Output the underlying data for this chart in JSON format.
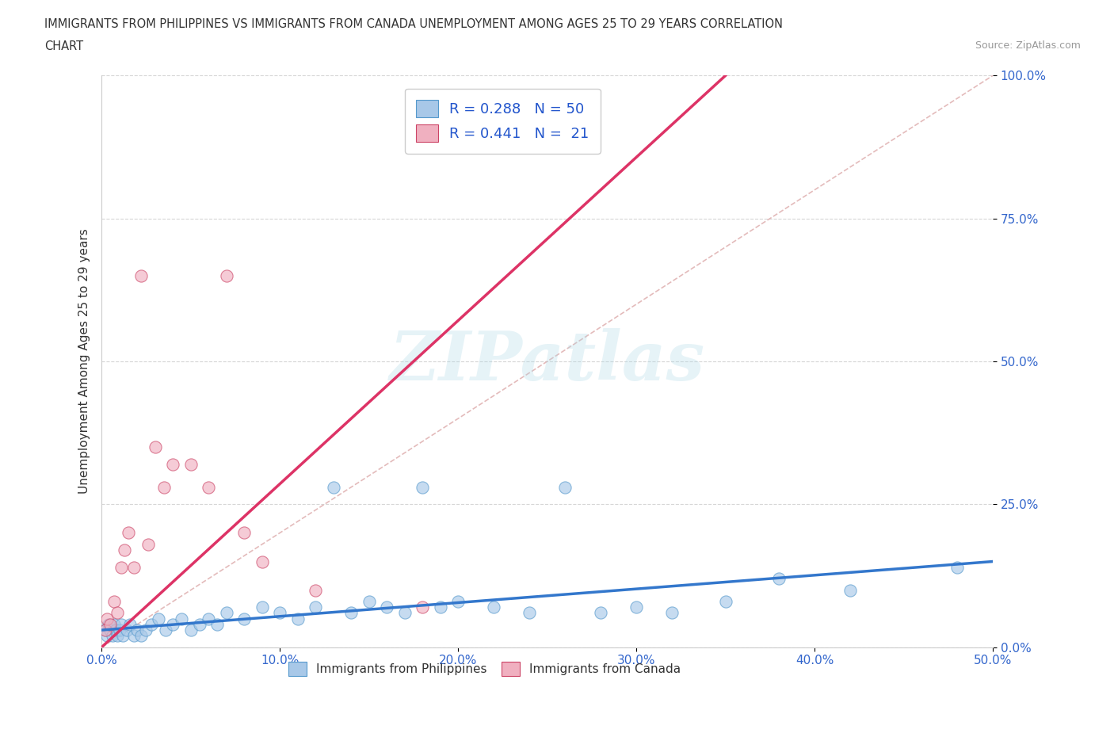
{
  "title_line1": "IMMIGRANTS FROM PHILIPPINES VS IMMIGRANTS FROM CANADA UNEMPLOYMENT AMONG AGES 25 TO 29 YEARS CORRELATION",
  "title_line2": "CHART",
  "source_text": "Source: ZipAtlas.com",
  "legend_label1": "Immigrants from Philippines",
  "legend_label2": "Immigrants from Canada",
  "ylabel": "Unemployment Among Ages 25 to 29 years",
  "xlim": [
    0.0,
    0.5
  ],
  "ylim": [
    0.0,
    1.0
  ],
  "xticks": [
    0.0,
    0.1,
    0.2,
    0.3,
    0.4,
    0.5
  ],
  "yticks": [
    0.0,
    0.25,
    0.5,
    0.75,
    1.0
  ],
  "xticklabels": [
    "0.0%",
    "10.0%",
    "20.0%",
    "30.0%",
    "40.0%",
    "50.0%"
  ],
  "yticklabels": [
    "0.0%",
    "25.0%",
    "50.0%",
    "75.0%",
    "100.0%"
  ],
  "color_blue": "#a8c8e8",
  "color_pink": "#f0b0c0",
  "edge_blue": "#5599cc",
  "edge_pink": "#cc4466",
  "line_blue_color": "#3377cc",
  "line_pink_color": "#dd3366",
  "line_diag_color": "#ddaaaa",
  "R_blue": 0.288,
  "N_blue": 50,
  "R_pink": 0.441,
  "N_pink": 21,
  "legend_text_color": "#2255cc",
  "watermark": "ZIPatlas",
  "blue_x": [
    0.002,
    0.003,
    0.004,
    0.005,
    0.006,
    0.007,
    0.008,
    0.009,
    0.01,
    0.011,
    0.012,
    0.014,
    0.016,
    0.018,
    0.02,
    0.022,
    0.025,
    0.028,
    0.032,
    0.036,
    0.04,
    0.045,
    0.05,
    0.055,
    0.06,
    0.065,
    0.07,
    0.08,
    0.09,
    0.1,
    0.11,
    0.12,
    0.13,
    0.14,
    0.15,
    0.16,
    0.17,
    0.18,
    0.19,
    0.2,
    0.22,
    0.24,
    0.26,
    0.28,
    0.3,
    0.32,
    0.35,
    0.38,
    0.42,
    0.48
  ],
  "blue_y": [
    0.03,
    0.02,
    0.04,
    0.03,
    0.02,
    0.04,
    0.03,
    0.02,
    0.03,
    0.04,
    0.02,
    0.03,
    0.04,
    0.02,
    0.03,
    0.02,
    0.03,
    0.04,
    0.05,
    0.03,
    0.04,
    0.05,
    0.03,
    0.04,
    0.05,
    0.04,
    0.06,
    0.05,
    0.07,
    0.06,
    0.05,
    0.07,
    0.28,
    0.06,
    0.08,
    0.07,
    0.06,
    0.28,
    0.07,
    0.08,
    0.07,
    0.06,
    0.28,
    0.06,
    0.07,
    0.06,
    0.08,
    0.12,
    0.1,
    0.14
  ],
  "pink_x": [
    0.002,
    0.003,
    0.005,
    0.007,
    0.009,
    0.011,
    0.013,
    0.015,
    0.018,
    0.022,
    0.026,
    0.03,
    0.035,
    0.04,
    0.05,
    0.06,
    0.07,
    0.08,
    0.09,
    0.12,
    0.18
  ],
  "pink_y": [
    0.03,
    0.05,
    0.04,
    0.08,
    0.06,
    0.14,
    0.17,
    0.2,
    0.14,
    0.65,
    0.18,
    0.35,
    0.28,
    0.32,
    0.32,
    0.28,
    0.65,
    0.2,
    0.15,
    0.1,
    0.07
  ],
  "pink_line_x0": 0.0,
  "pink_line_y0": 0.0,
  "pink_line_x1": 0.35,
  "pink_line_y1": 1.0,
  "blue_line_x0": 0.0,
  "blue_line_y0": 0.03,
  "blue_line_x1": 0.5,
  "blue_line_y1": 0.15
}
